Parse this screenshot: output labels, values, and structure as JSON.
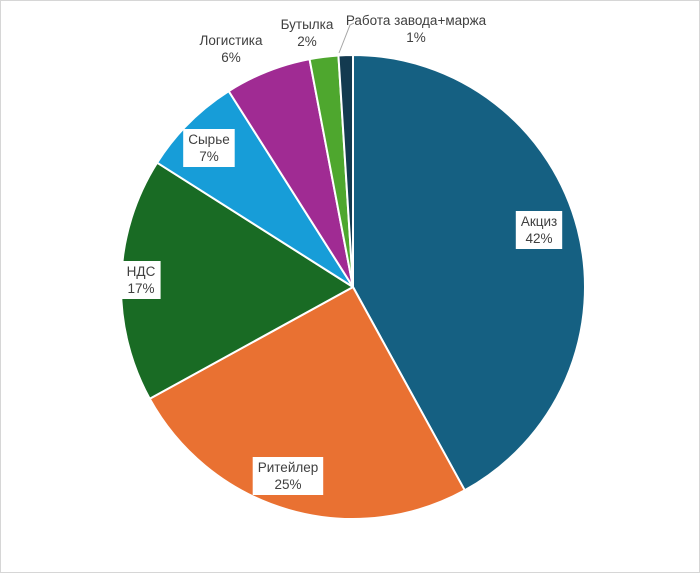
{
  "chart_data": {
    "type": "pie",
    "title": "",
    "unit": "%",
    "direction": "clockwise",
    "start_angle_deg": 0,
    "legend": "none",
    "categories": [
      "Акциз",
      "Ритейлер",
      "НДС",
      "Сырье",
      "Логистика",
      "Бутылка",
      "Работа завода+маржа"
    ],
    "values": [
      42,
      25,
      17,
      7,
      6,
      2,
      1
    ],
    "label_color": "#404040",
    "leader_color": "#a6a6a6",
    "slice_border_color": "#ffffff",
    "center": [
      352,
      286
    ],
    "radius": 232,
    "slices": [
      {
        "label": "Акциз",
        "value": 42,
        "color": "#156082",
        "label_pos": [
          538,
          227
        ],
        "boxed": true
      },
      {
        "label": "Ритейлер",
        "value": 25,
        "color": "#E97132",
        "label_pos": [
          287,
          473
        ],
        "boxed": true
      },
      {
        "label": "НДС",
        "value": 17,
        "color": "#196B24",
        "label_pos": [
          140,
          277
        ],
        "boxed": true
      },
      {
        "label": "Сырье",
        "value": 7,
        "color": "#179DD8",
        "label_pos": [
          208,
          145
        ],
        "boxed": true
      },
      {
        "label": "Логистика",
        "value": 6,
        "color": "#A02B93",
        "label_pos": [
          230,
          46
        ],
        "boxed": false
      },
      {
        "label": "Бутылка",
        "value": 2,
        "color": "#4EA72E",
        "label_pos": [
          306,
          30
        ],
        "boxed": false
      },
      {
        "label": "Работа завода+маржа",
        "value": 1,
        "color": "#133A50",
        "label_pos": [
          415,
          26
        ],
        "boxed": false,
        "leader": [
          [
            353,
            22
          ],
          [
            349,
            24
          ],
          [
            338,
            52
          ]
        ]
      }
    ]
  }
}
